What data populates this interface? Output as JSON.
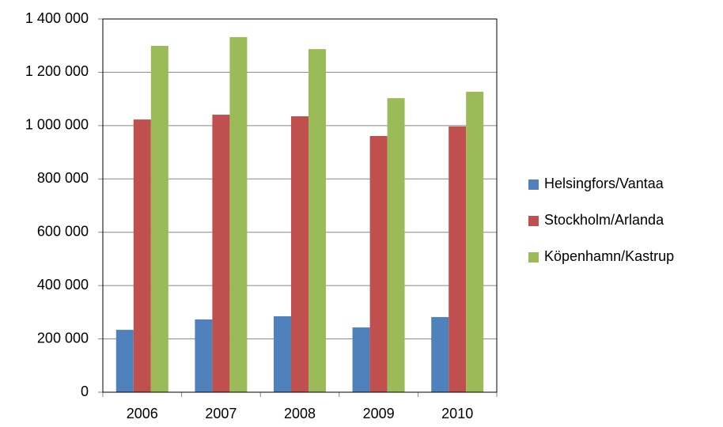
{
  "chart_data": {
    "type": "bar",
    "categories": [
      "2006",
      "2007",
      "2008",
      "2009",
      "2010"
    ],
    "series": [
      {
        "name": "Helsingfors/Vantaa",
        "color": "#4f81bd",
        "values": [
          234000,
          273000,
          285000,
          243000,
          282000
        ]
      },
      {
        "name": "Stockholm/Arlanda",
        "color": "#c0504d",
        "values": [
          1023000,
          1041000,
          1035000,
          961000,
          997000
        ]
      },
      {
        "name": "Köpenhamn/Kastrup",
        "color": "#9bbb59",
        "values": [
          1299000,
          1332000,
          1287000,
          1103000,
          1127000
        ]
      }
    ],
    "ylim": [
      0,
      1400000
    ],
    "yticks": [
      0,
      {
        "value": 200000,
        "label": "200 000"
      },
      {
        "value": 400000,
        "label": "400 000"
      },
      {
        "value": 600000,
        "label": "600 000"
      },
      {
        "value": 800000,
        "label": "800 000"
      },
      {
        "value": 1000000,
        "label": "1 000 000"
      },
      {
        "value": 1200000,
        "label": "1 200 000"
      },
      {
        "value": 1400000,
        "label": "1 400 000"
      }
    ],
    "grid": true,
    "legend": "right"
  }
}
